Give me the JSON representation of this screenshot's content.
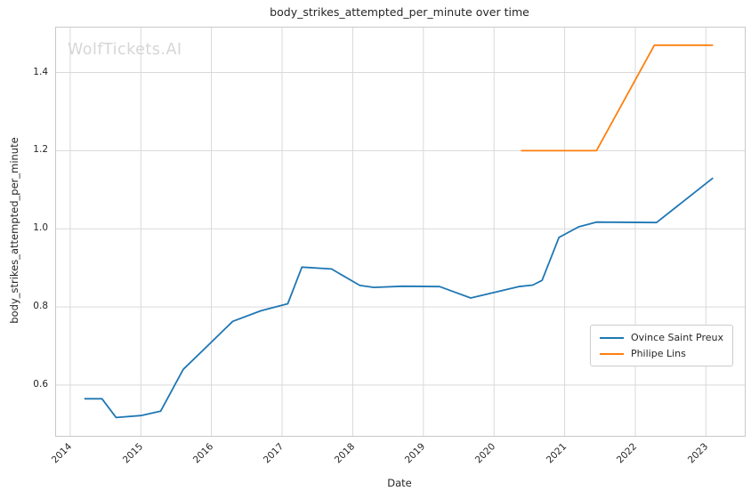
{
  "watermark": "WolfTickets.AI",
  "colors": {
    "grid": "#d9d9d9",
    "spine": "#c9c9c9",
    "text": "#262626",
    "watermark": "#d6d6d6",
    "series_blue": "#1f77b4",
    "series_orange": "#ff7f0e"
  },
  "chart_data": {
    "type": "line",
    "title": "body_strikes_attempted_per_minute over time",
    "xlabel": "Date",
    "ylabel": "body_strikes_attempted_per_minute",
    "grid": true,
    "legend_position": "lower right",
    "xlim": [
      2013.8,
      2023.55
    ],
    "ylim": [
      0.47,
      1.515
    ],
    "x_ticks": [
      2014,
      2015,
      2016,
      2017,
      2018,
      2019,
      2020,
      2021,
      2022,
      2023
    ],
    "y_ticks": [
      0.6,
      0.8,
      1.0,
      1.2,
      1.4
    ],
    "series": [
      {
        "name": "Ovince Saint Preux",
        "color": "#1f77b4",
        "x": [
          2014.2,
          2014.45,
          2014.65,
          2015.0,
          2015.28,
          2015.6,
          2016.0,
          2016.3,
          2016.7,
          2017.08,
          2017.28,
          2017.7,
          2018.1,
          2018.3,
          2018.7,
          2019.23,
          2019.67,
          2020.35,
          2020.55,
          2020.68,
          2020.92,
          2021.2,
          2021.45,
          2022.3,
          2023.1
        ],
        "y": [
          0.565,
          0.565,
          0.517,
          0.522,
          0.533,
          0.64,
          0.71,
          0.763,
          0.79,
          0.808,
          0.902,
          0.897,
          0.855,
          0.85,
          0.853,
          0.852,
          0.823,
          0.852,
          0.856,
          0.868,
          0.978,
          1.005,
          1.017,
          1.016,
          1.13
        ]
      },
      {
        "name": "Philipe Lins",
        "color": "#ff7f0e",
        "x": [
          2020.38,
          2021.45,
          2022.27,
          2023.1
        ],
        "y": [
          1.2,
          1.2,
          1.47,
          1.47
        ]
      }
    ]
  }
}
